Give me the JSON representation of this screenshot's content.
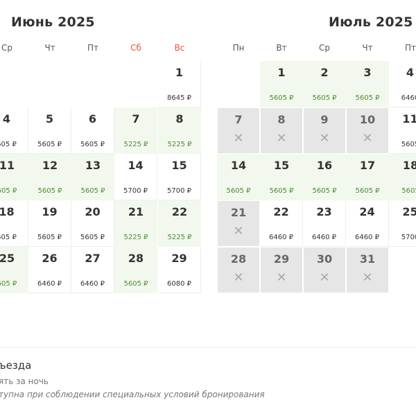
{
  "june": {
    "title": "Июнь 2025",
    "weekdays": [
      "Ср",
      "Чт",
      "Пт",
      "Сб",
      "Вс"
    ],
    "days": [
      {
        "day": "1",
        "price": "8645 ₽"
      },
      {
        "day": "4",
        "price": "605 ₽"
      },
      {
        "day": "5",
        "price": "5605 ₽"
      },
      {
        "day": "6",
        "price": "5605 ₽"
      },
      {
        "day": "7",
        "price": "5225 ₽"
      },
      {
        "day": "8",
        "price": "5225 ₽"
      },
      {
        "day": "11",
        "price": "605 ₽"
      },
      {
        "day": "12",
        "price": "5605 ₽"
      },
      {
        "day": "13",
        "price": "5605 ₽"
      },
      {
        "day": "14",
        "price": "5700 ₽"
      },
      {
        "day": "15",
        "price": "5700 ₽"
      },
      {
        "day": "18",
        "price": "605 ₽"
      },
      {
        "day": "19",
        "price": "5605 ₽"
      },
      {
        "day": "20",
        "price": "5605 ₽"
      },
      {
        "day": "21",
        "price": "5225 ₽"
      },
      {
        "day": "22",
        "price": "5225 ₽"
      },
      {
        "day": "25",
        "price": "605 ₽"
      },
      {
        "day": "26",
        "price": "6460 ₽"
      },
      {
        "day": "27",
        "price": "6460 ₽"
      },
      {
        "day": "28",
        "price": "5605 ₽"
      },
      {
        "day": "29",
        "price": "6080 ₽"
      }
    ]
  },
  "july": {
    "title": "Июль 2025",
    "weekdays": [
      "Пн",
      "Вт",
      "Ср",
      "Чт",
      "Пт"
    ],
    "days": [
      {
        "day": "1",
        "price": "5605 ₽"
      },
      {
        "day": "2",
        "price": "5605 ₽"
      },
      {
        "day": "3",
        "price": "5605 ₽"
      },
      {
        "day": "4",
        "price": "6460"
      },
      {
        "day": "7",
        "price": ""
      },
      {
        "day": "8",
        "price": ""
      },
      {
        "day": "9",
        "price": ""
      },
      {
        "day": "10",
        "price": ""
      },
      {
        "day": "11",
        "price": "5605"
      },
      {
        "day": "14",
        "price": "5605 ₽"
      },
      {
        "day": "15",
        "price": "5605 ₽"
      },
      {
        "day": "16",
        "price": "5605 ₽"
      },
      {
        "day": "17",
        "price": "5605 ₽"
      },
      {
        "day": "18",
        "price": "5605"
      },
      {
        "day": "21",
        "price": ""
      },
      {
        "day": "22",
        "price": "6460 ₽"
      },
      {
        "day": "23",
        "price": "6460 ₽"
      },
      {
        "day": "24",
        "price": "6460 ₽"
      },
      {
        "day": "25",
        "price": "5700"
      },
      {
        "day": "28",
        "price": ""
      },
      {
        "day": "29",
        "price": ""
      },
      {
        "day": "30",
        "price": ""
      },
      {
        "day": "31",
        "price": ""
      }
    ]
  },
  "unavailable_mark": "✕",
  "legend": {
    "title": "ъезда",
    "line1": "ять за ночь",
    "line2": "тупна при соблюдении специальных условий бронирования"
  },
  "colors": {
    "weekend": "#e8542a",
    "available_green": "#f2f8ee",
    "unavailable_gray": "#e6e6e6",
    "price_green": "#4a8c32"
  }
}
